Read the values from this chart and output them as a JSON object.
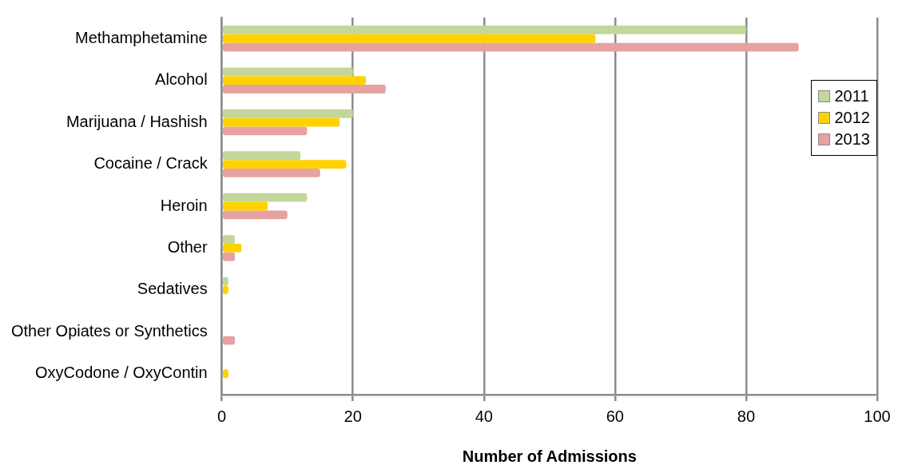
{
  "chart_data": {
    "type": "bar",
    "orientation": "horizontal",
    "xlabel": "Number of Admissions",
    "categories": [
      "Methamphetamine",
      "Alcohol",
      "Marijuana / Hashish",
      "Cocaine / Crack",
      "Heroin",
      "Other",
      "Sedatives",
      "Other Opiates or Synthetics",
      "OxyCodone / OxyContin"
    ],
    "series": [
      {
        "name": "2011",
        "color": "#c3d69b",
        "values": [
          80,
          20,
          20,
          12,
          13,
          2,
          1,
          0,
          0
        ]
      },
      {
        "name": "2012",
        "color": "#ffd200",
        "values": [
          57,
          22,
          18,
          19,
          7,
          3,
          1,
          0,
          1
        ]
      },
      {
        "name": "2013",
        "color": "#e6a1a1",
        "values": [
          88,
          25,
          13,
          15,
          10,
          2,
          0,
          2,
          0
        ]
      }
    ],
    "xlim": [
      0,
      100
    ],
    "xticks": [
      0,
      20,
      40,
      60,
      80,
      100
    ],
    "grid": "x",
    "legend": "right"
  }
}
